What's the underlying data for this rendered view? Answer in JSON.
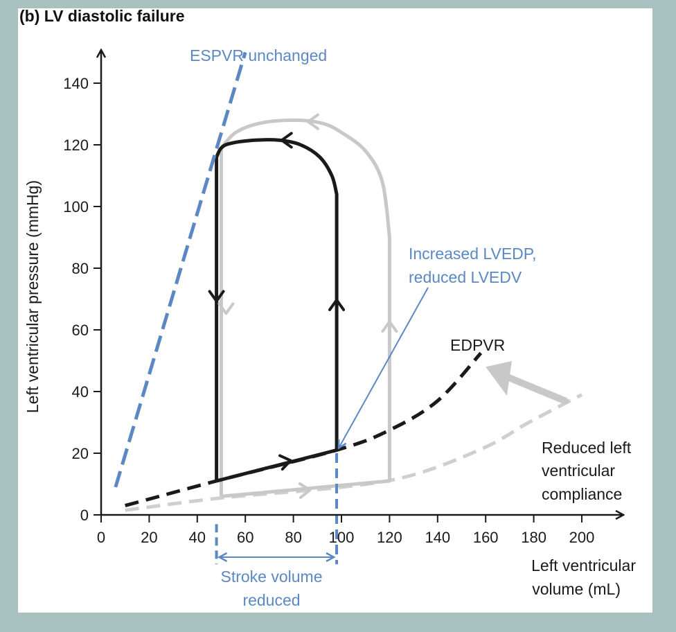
{
  "chart_data": {
    "type": "line",
    "title": "(b)  LV diastolic failure",
    "xlabel_lines": [
      "Left ventricular",
      "volume (mL)"
    ],
    "ylabel": "Left ventricular pressure (mmHg)",
    "xlim": [
      0,
      220
    ],
    "ylim": [
      0,
      150
    ],
    "xticks": [
      0,
      20,
      40,
      60,
      80,
      100,
      120,
      140,
      160,
      180,
      200
    ],
    "yticks": [
      0,
      20,
      40,
      60,
      80,
      100,
      120,
      140
    ],
    "grid": false,
    "series": [
      {
        "key": "normal_loop",
        "color": "#c8c8c8",
        "points": [
          [
            50,
            6
          ],
          [
            120,
            11
          ],
          [
            120,
            90
          ],
          [
            117,
            108
          ],
          [
            110,
            118
          ],
          [
            100,
            124
          ],
          [
            92,
            127
          ],
          [
            80,
            128
          ],
          [
            66,
            127
          ],
          [
            56,
            124
          ],
          [
            50,
            119
          ],
          [
            50,
            6
          ]
        ]
      },
      {
        "key": "failure_loop",
        "color": "#1a1a1a",
        "points": [
          [
            48,
            11
          ],
          [
            98,
            21
          ],
          [
            98,
            104
          ],
          [
            96,
            110
          ],
          [
            91,
            116
          ],
          [
            83,
            120
          ],
          [
            74,
            121.5
          ],
          [
            64,
            121.5
          ],
          [
            54,
            120.5
          ],
          [
            50,
            119
          ],
          [
            48,
            116
          ],
          [
            48,
            11
          ]
        ]
      },
      {
        "key": "edpvr_failure",
        "color": "#1a1a1a",
        "dashed": true,
        "points": [
          [
            10,
            3
          ],
          [
            48,
            11
          ],
          [
            98,
            21
          ],
          [
            120,
            27.5
          ],
          [
            140,
            37
          ],
          [
            158,
            52.5
          ]
        ]
      },
      {
        "key": "edpvr_normal",
        "color": "#cfcfcf",
        "dashed": true,
        "points": [
          [
            10,
            1.5
          ],
          [
            50,
            5.5
          ],
          [
            100,
            9
          ],
          [
            130,
            13
          ],
          [
            160,
            22
          ],
          [
            178,
            30
          ],
          [
            200,
            39
          ]
        ]
      },
      {
        "key": "espvr",
        "color": "#5b88c4",
        "dashed": true,
        "points": [
          [
            6,
            9
          ],
          [
            60,
            150
          ]
        ]
      }
    ],
    "annotations": {
      "espvr": "ESPVR unchanged",
      "lvedp_line1": "Increased LVEDP,",
      "lvedp_line2": "reduced LVEDV",
      "edpvr": "EDPVR",
      "compliance_line1": "Reduced left",
      "compliance_line2": "ventricular",
      "compliance_line3": "compliance",
      "stroke_line1": "Stroke volume",
      "stroke_line2": "reduced"
    },
    "colors": {
      "accent_blue": "#5b88c4",
      "loop_black": "#1a1a1a",
      "loop_grey": "#c8c8c8",
      "background": "#a6c1c0"
    }
  }
}
